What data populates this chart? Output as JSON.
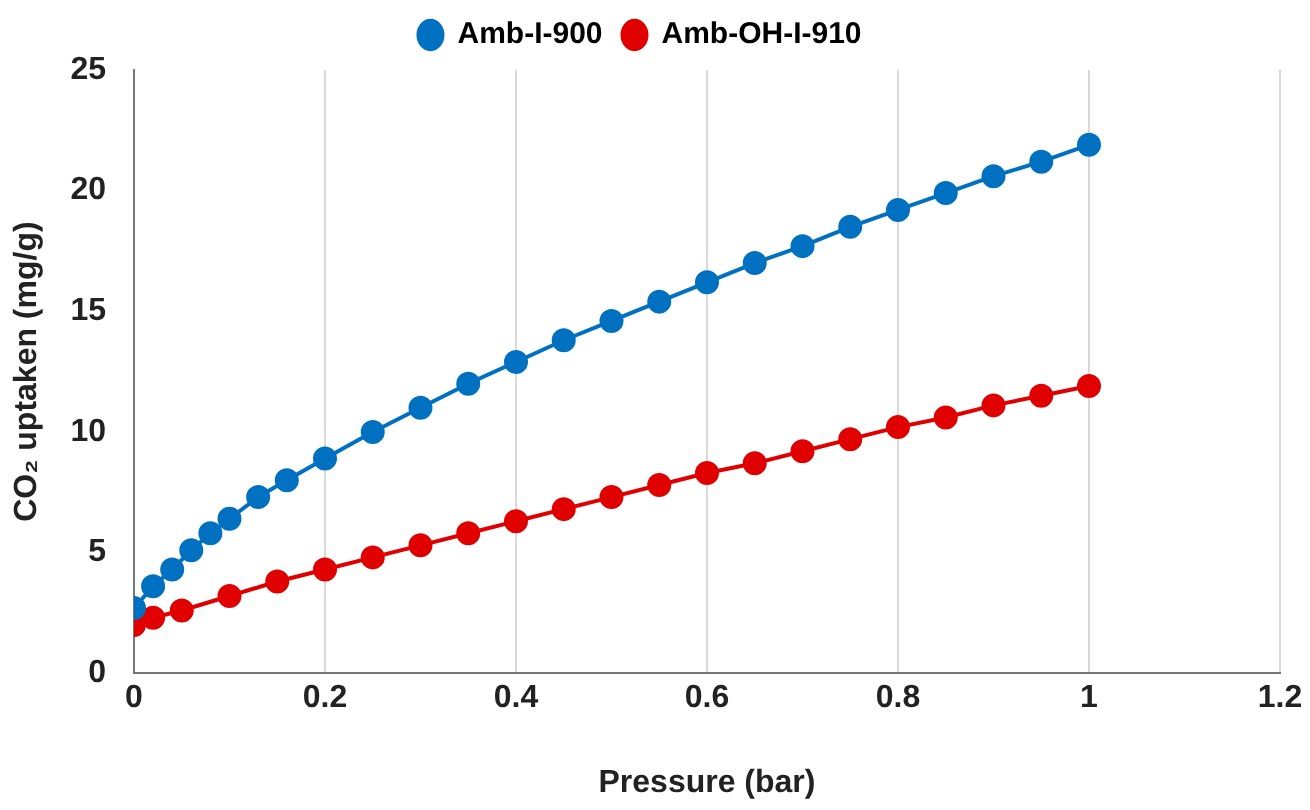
{
  "chart_data": {
    "type": "line",
    "xlabel": "Pressure (bar)",
    "ylabel": "CO₂ uptaken (mg/g)",
    "xlim": [
      0,
      1.2
    ],
    "xticks": [
      0,
      0.2,
      0.4,
      0.6,
      0.8,
      1,
      1.2
    ],
    "ylim": [
      0,
      25
    ],
    "yticks": [
      0,
      5,
      10,
      15,
      20,
      25
    ],
    "grid": "x",
    "legend": "top",
    "marker": "circle",
    "line_style": "solid",
    "series": [
      {
        "name": "Amb-I-900",
        "color": "#0070c0",
        "x": [
          0,
          0.02,
          0.04,
          0.06,
          0.08,
          0.1,
          0.13,
          0.16,
          0.2,
          0.25,
          0.3,
          0.35,
          0.4,
          0.45,
          0.5,
          0.55,
          0.6,
          0.65,
          0.7,
          0.75,
          0.8,
          0.85,
          0.9,
          0.95,
          1
        ],
        "values": [
          2.7,
          3.6,
          4.3,
          5.1,
          5.8,
          6.4,
          7.3,
          8.0,
          8.9,
          10.0,
          11.0,
          12.0,
          12.9,
          13.8,
          14.6,
          15.4,
          16.2,
          17.0,
          17.7,
          18.5,
          19.2,
          19.9,
          20.6,
          21.2,
          21.9
        ]
      },
      {
        "name": "Amb-OH-I-910",
        "color": "#e00000",
        "x": [
          0,
          0.02,
          0.05,
          0.1,
          0.15,
          0.2,
          0.25,
          0.3,
          0.35,
          0.4,
          0.45,
          0.5,
          0.55,
          0.6,
          0.65,
          0.7,
          0.75,
          0.8,
          0.85,
          0.9,
          0.95,
          1
        ],
        "values": [
          2.0,
          2.3,
          2.6,
          3.2,
          3.8,
          4.3,
          4.8,
          5.3,
          5.8,
          6.3,
          6.8,
          7.3,
          7.8,
          8.3,
          8.7,
          9.2,
          9.7,
          10.2,
          10.6,
          11.1,
          11.5,
          11.9
        ]
      }
    ]
  }
}
